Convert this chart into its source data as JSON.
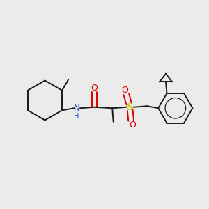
{
  "bg_color": "#ebebeb",
  "bond_color": "#1a1a1a",
  "N_color": "#2244cc",
  "O_color": "#dd0000",
  "S_color": "#cccc00",
  "line_width": 1.4,
  "fig_width": 3.0,
  "fig_height": 3.0,
  "dpi": 100,
  "xlim": [
    0,
    10
  ],
  "ylim": [
    0,
    10
  ]
}
